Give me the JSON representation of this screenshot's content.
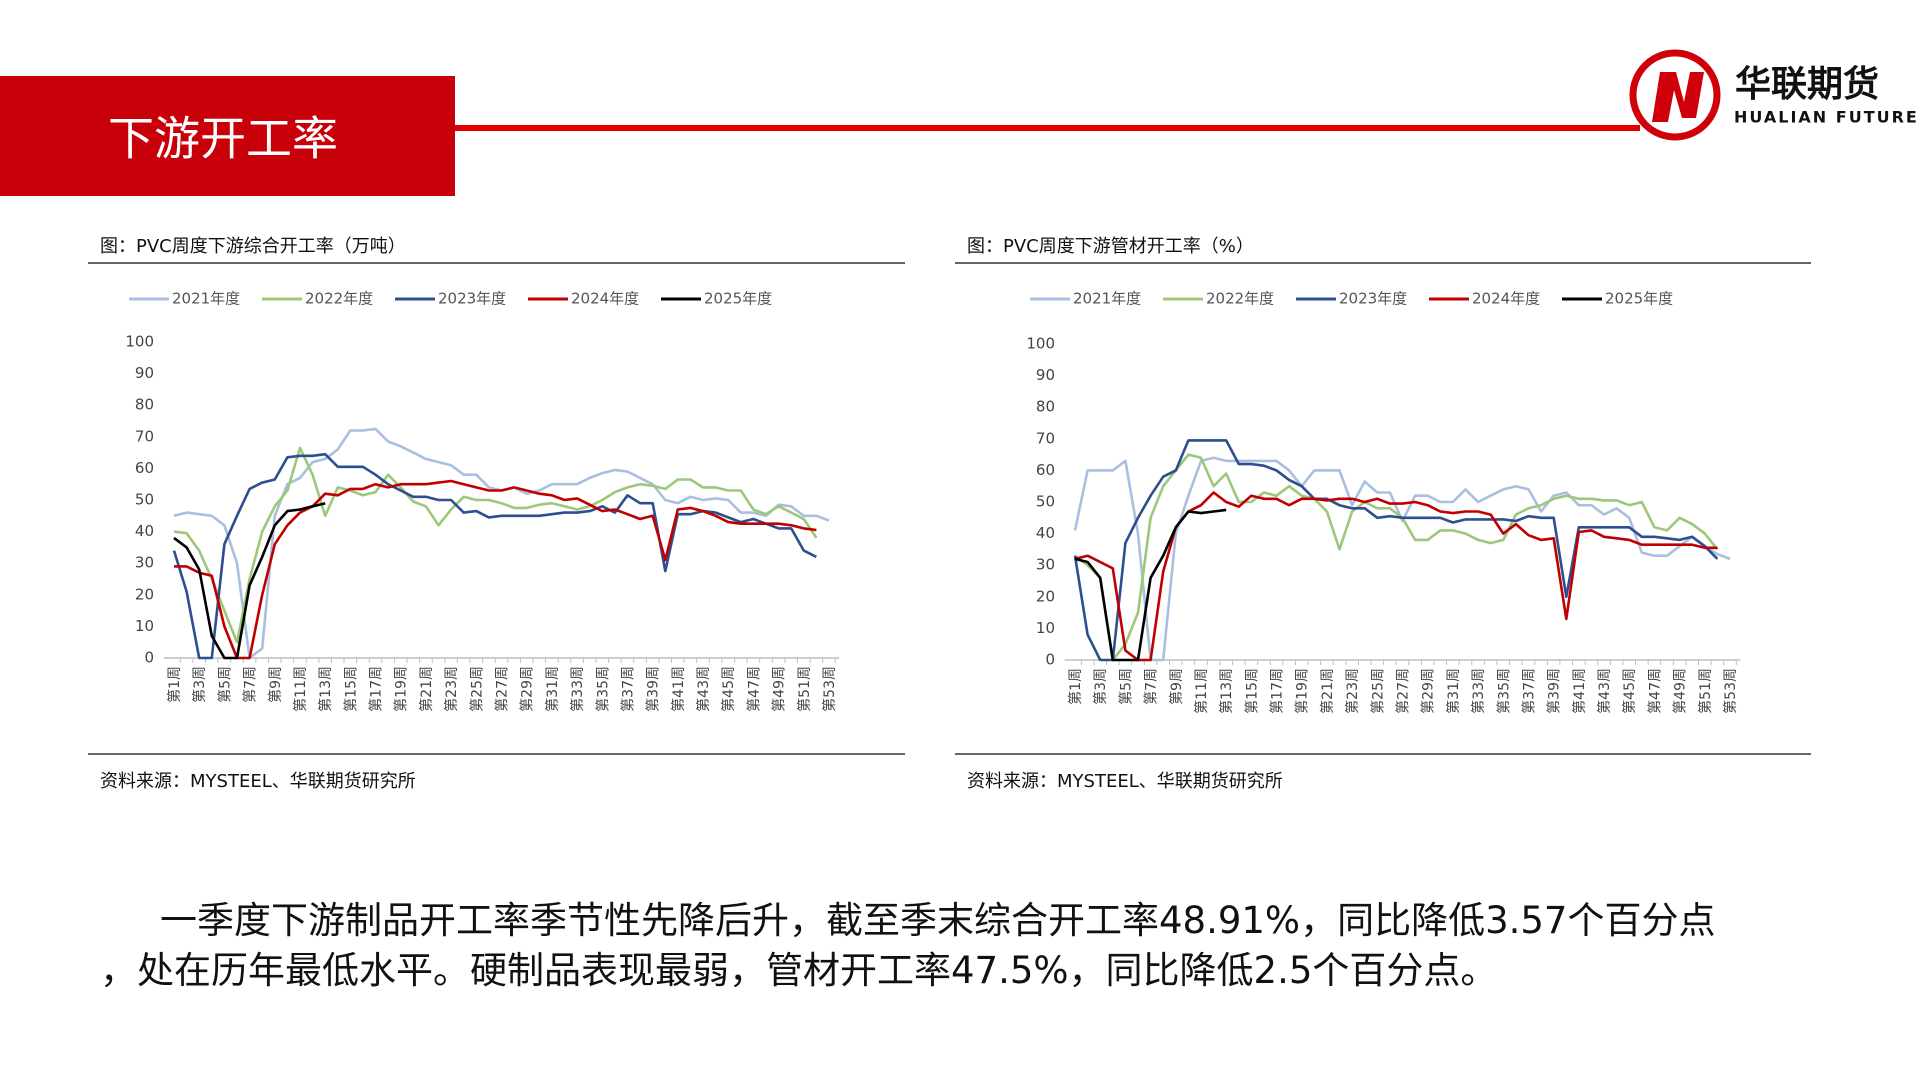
{
  "header": {
    "title": "下游开工率"
  },
  "logo": {
    "name": "华联期货",
    "subname": "HUALIAN FUTURES"
  },
  "chart_data": [
    {
      "type": "line",
      "title": "图：PVC周度下游综合开工率（万吨）",
      "source": "资料来源：MYSTEEL、华联期货研究所",
      "categories": [
        "第1周",
        null,
        "第3周",
        null,
        "第5周",
        null,
        "第7周",
        null,
        "第9周",
        null,
        "第11周",
        null,
        "第13周",
        null,
        "第15周",
        null,
        "第17周",
        null,
        "第19周",
        null,
        "第21周",
        null,
        "第23周",
        null,
        "第25周",
        null,
        "第27周",
        null,
        "第29周",
        null,
        "第31周",
        null,
        "第33周",
        null,
        "第35周",
        null,
        "第37周",
        null,
        "第39周",
        null,
        "第41周",
        null,
        "第43周",
        null,
        "第45周",
        null,
        "第47周",
        null,
        "第49周",
        null,
        "第51周",
        null,
        "第53周"
      ],
      "ylim": [
        0,
        100
      ],
      "yticks": [
        0,
        10,
        20,
        30,
        40,
        50,
        60,
        70,
        80,
        90,
        100
      ],
      "legend": "top",
      "series": [
        {
          "name": "2021年度",
          "color": "#a9bfe0",
          "values": [
            45,
            46,
            45.5,
            45,
            42,
            30,
            0,
            3,
            45,
            55,
            57,
            62,
            63,
            66,
            72,
            72,
            72.5,
            68.5,
            67,
            65,
            63,
            62,
            61,
            58,
            58,
            54,
            53,
            54,
            52,
            53,
            55,
            55,
            55,
            57,
            58.5,
            59.5,
            59,
            57,
            55,
            50,
            49,
            51,
            50,
            50.5,
            50,
            46,
            46,
            45,
            48.5,
            48,
            45,
            45,
            43.5
          ]
        },
        {
          "name": "2022年度",
          "color": "#9dc87a",
          "values": [
            40,
            39.5,
            34,
            25,
            15,
            5,
            25,
            40,
            48,
            53,
            66.5,
            58,
            45,
            54,
            53,
            51.5,
            52.5,
            58,
            54,
            49.5,
            48,
            42,
            47,
            51,
            50,
            50,
            49,
            47.5,
            47.5,
            48.5,
            49,
            48,
            47,
            48,
            50,
            52.5,
            54,
            55,
            54.5,
            53.5,
            56.5,
            56.5,
            54,
            54,
            53,
            53,
            47,
            45.5,
            48,
            46,
            44,
            38,
            null
          ]
        },
        {
          "name": "2023年度",
          "color": "#2e4f8f",
          "values": [
            34,
            21,
            0,
            0,
            36,
            45,
            53.5,
            55.5,
            56.5,
            63.5,
            64,
            64,
            64.5,
            60.5,
            60.5,
            60.5,
            58,
            55,
            53,
            51,
            51,
            50,
            50,
            46,
            46.5,
            44.5,
            45,
            45,
            45,
            45,
            45.5,
            46,
            46,
            46.5,
            48,
            46,
            51.5,
            49,
            49,
            27.5,
            45.5,
            45.5,
            46.5,
            46,
            44.5,
            43,
            44,
            42.5,
            41,
            41,
            34,
            32,
            null
          ]
        },
        {
          "name": "2024年度",
          "color": "#c00000",
          "values": [
            29,
            29,
            27,
            26,
            10,
            0,
            0,
            20,
            36,
            42,
            46,
            48,
            52,
            51.5,
            53.5,
            53.5,
            55,
            54,
            55,
            55,
            55,
            55.5,
            56,
            55,
            54,
            53,
            53,
            54,
            53,
            52,
            51.5,
            50,
            50.5,
            48.5,
            46.5,
            47,
            45.5,
            44,
            45,
            31,
            47,
            47.5,
            46.5,
            45,
            43,
            42.5,
            42.5,
            42.5,
            42.5,
            42,
            41,
            40.5,
            null
          ]
        },
        {
          "name": "2025年度",
          "color": "#000000",
          "values": [
            38,
            35,
            28,
            7,
            0,
            0,
            23,
            32,
            42,
            46.5,
            47,
            48,
            48.91,
            null,
            null,
            null,
            null,
            null,
            null,
            null,
            null,
            null,
            null,
            null,
            null,
            null,
            null,
            null,
            null,
            null,
            null,
            null,
            null,
            null,
            null,
            null,
            null,
            null,
            null,
            null,
            null,
            null,
            null,
            null,
            null,
            null,
            null,
            null,
            null,
            null,
            null,
            null,
            null
          ]
        }
      ]
    },
    {
      "type": "line",
      "title": "图：PVC周度下游管材开工率（%）",
      "source": "资料来源：MYSTEEL、华联期货研究所",
      "categories": [
        "第1周",
        null,
        "第3周",
        null,
        "第5周",
        null,
        "第7周",
        null,
        "第9周",
        null,
        "第11周",
        null,
        "第13周",
        null,
        "第15周",
        null,
        "第17周",
        null,
        "第19周",
        null,
        "第21周",
        null,
        "第23周",
        null,
        "第25周",
        null,
        "第27周",
        null,
        "第29周",
        null,
        "第31周",
        null,
        "第33周",
        null,
        "第35周",
        null,
        "第37周",
        null,
        "第39周",
        null,
        "第41周",
        null,
        "第43周",
        null,
        "第45周",
        null,
        "第47周",
        null,
        "第49周",
        null,
        "第51周",
        null,
        "第53周"
      ],
      "ylim": [
        0,
        100
      ],
      "yticks": [
        0,
        10,
        20,
        30,
        40,
        50,
        60,
        70,
        80,
        90,
        100
      ],
      "legend": "top",
      "series": [
        {
          "name": "2021年度",
          "color": "#a9bfe0",
          "values": [
            41,
            60,
            60,
            60,
            63,
            40,
            0,
            0,
            40,
            52,
            63,
            64,
            63,
            63,
            63,
            63,
            63,
            60,
            55,
            60,
            60,
            60,
            49,
            56.5,
            53,
            53,
            44,
            52,
            52,
            50,
            50,
            54,
            50,
            52,
            54,
            55,
            54,
            47,
            52,
            53,
            49,
            49,
            46,
            48,
            45,
            34,
            33,
            33,
            36,
            39,
            36,
            33.5,
            32
          ]
        },
        {
          "name": "2022年度",
          "color": "#9dc87a",
          "values": [
            33,
            30,
            26,
            0,
            5,
            15,
            45,
            55,
            60,
            65,
            64,
            55,
            59,
            50,
            50,
            53,
            52,
            55,
            52,
            51,
            47,
            35,
            47,
            50,
            48,
            48,
            45,
            38,
            38,
            41,
            41,
            40,
            38,
            37,
            38,
            46,
            48,
            49,
            51,
            52,
            51,
            51,
            50.5,
            50.5,
            49,
            50,
            42,
            41,
            45,
            43,
            40,
            35,
            null
          ]
        },
        {
          "name": "2023年度",
          "color": "#2e4f8f",
          "values": [
            33,
            8,
            0,
            0,
            37,
            45,
            52,
            58,
            60,
            69.5,
            69.5,
            69.5,
            69.5,
            62,
            62,
            61.5,
            60,
            57,
            55,
            51,
            51,
            49,
            48,
            48,
            45,
            45.5,
            45,
            45,
            45,
            45,
            43.5,
            44.5,
            44.5,
            44.5,
            44.5,
            44,
            45.5,
            45,
            45,
            20,
            42,
            42,
            42,
            42,
            42,
            39,
            39,
            38.5,
            38,
            39,
            36,
            32,
            null
          ]
        },
        {
          "name": "2024年度",
          "color": "#c00000",
          "values": [
            32,
            33,
            31,
            29,
            3,
            0,
            0,
            28,
            42,
            47,
            49,
            53,
            50,
            48.5,
            52,
            51,
            51,
            49,
            51,
            51,
            50.5,
            51,
            51,
            50,
            51,
            49.5,
            49.5,
            50,
            49,
            47,
            46.5,
            47,
            47,
            46,
            40,
            43,
            39.5,
            38,
            38.5,
            13,
            40.5,
            41,
            39,
            38.5,
            38,
            36.5,
            36.5,
            36.5,
            36.5,
            36.5,
            35.5,
            35.5,
            null
          ]
        },
        {
          "name": "2025年度",
          "color": "#000000",
          "values": [
            32,
            31,
            26,
            0,
            0,
            0,
            26,
            33,
            42,
            47,
            46.5,
            47,
            47.5,
            null,
            null,
            null,
            null,
            null,
            null,
            null,
            null,
            null,
            null,
            null,
            null,
            null,
            null,
            null,
            null,
            null,
            null,
            null,
            null,
            null,
            null,
            null,
            null,
            null,
            null,
            null,
            null,
            null,
            null,
            null,
            null,
            null,
            null,
            null,
            null,
            null,
            null,
            null,
            null
          ]
        }
      ]
    }
  ],
  "paragraph": {
    "lines": [
      "一季度下游制品开工率季节性先降后升，截至季末综合开工率48.91%，同比降低3.57个百分点",
      "，处在历年最低水平。硬制品表现最弱，管材开工率47.5%，同比降低2.5个百分点。"
    ]
  }
}
